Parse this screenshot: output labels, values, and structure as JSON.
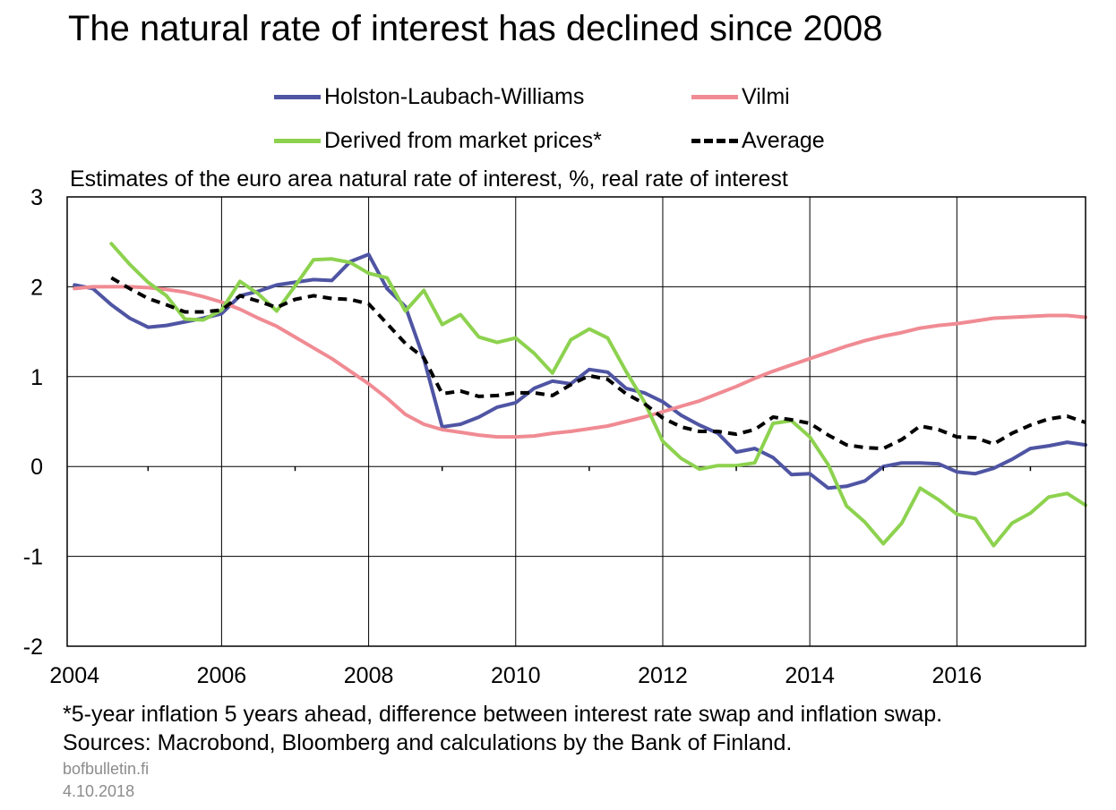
{
  "colors": {
    "hlw": "#4f55a3",
    "vilmi": "#f08b93",
    "market": "#8dd24f",
    "average": "#000000",
    "grid": "#000000"
  },
  "chart_data": {
    "type": "line",
    "title": "The natural rate of interest has declined since 2008",
    "subtitle": "Estimates of the euro area natural rate of interest, %, real rate of interest",
    "xlim": [
      2003.9,
      2017.75
    ],
    "ylim": [
      -2,
      3
    ],
    "yticks": [
      3,
      2,
      1,
      0,
      -1,
      -2
    ],
    "ytick_labels": [
      "3",
      "2",
      "1",
      "0",
      "-1",
      "-2"
    ],
    "xticks": [
      2004,
      2006,
      2008,
      2010,
      2012,
      2014,
      2016
    ],
    "xtick_labels": [
      "2004",
      "2006",
      "2008",
      "2010",
      "2012",
      "2014",
      "2016"
    ],
    "legend_position": "top",
    "series": [
      {
        "name": "Holston-Laubach-Williams",
        "color": "#4f55a3",
        "dash": "solid",
        "x": [
          2004.0,
          2004.25,
          2004.5,
          2004.75,
          2005.0,
          2005.25,
          2005.5,
          2005.75,
          2006.0,
          2006.25,
          2006.5,
          2006.75,
          2007.0,
          2007.25,
          2007.5,
          2007.75,
          2008.0,
          2008.25,
          2008.5,
          2008.75,
          2009.0,
          2009.25,
          2009.5,
          2009.75,
          2010.0,
          2010.25,
          2010.5,
          2010.75,
          2011.0,
          2011.25,
          2011.5,
          2011.75,
          2012.0,
          2012.25,
          2012.5,
          2012.75,
          2013.0,
          2013.25,
          2013.5,
          2013.75,
          2014.0,
          2014.25,
          2014.5,
          2014.75,
          2015.0,
          2015.25,
          2015.5,
          2015.75,
          2016.0,
          2016.25,
          2016.5,
          2016.75,
          2017.0,
          2017.25,
          2017.5,
          2017.75
        ],
        "values": [
          2.02,
          1.98,
          1.8,
          1.65,
          1.55,
          1.57,
          1.61,
          1.65,
          1.7,
          1.9,
          1.95,
          2.02,
          2.05,
          2.08,
          2.07,
          2.28,
          2.36,
          1.98,
          1.78,
          1.2,
          0.44,
          0.47,
          0.55,
          0.66,
          0.71,
          0.87,
          0.95,
          0.92,
          1.08,
          1.05,
          0.87,
          0.82,
          0.72,
          0.57,
          0.46,
          0.37,
          0.16,
          0.2,
          0.1,
          -0.09,
          -0.08,
          -0.24,
          -0.22,
          -0.16,
          0.0,
          0.04,
          0.04,
          0.03,
          -0.06,
          -0.08,
          -0.02,
          0.08,
          0.2,
          0.23,
          0.27,
          0.24
        ]
      },
      {
        "name": "Vilmi",
        "color": "#f08b93",
        "dash": "solid",
        "x": [
          2004.0,
          2004.25,
          2004.5,
          2004.75,
          2005.0,
          2005.25,
          2005.5,
          2005.75,
          2006.0,
          2006.25,
          2006.5,
          2006.75,
          2007.0,
          2007.25,
          2007.5,
          2007.75,
          2008.0,
          2008.25,
          2008.5,
          2008.75,
          2009.0,
          2009.25,
          2009.5,
          2009.75,
          2010.0,
          2010.25,
          2010.5,
          2010.75,
          2011.0,
          2011.25,
          2011.5,
          2011.75,
          2012.0,
          2012.25,
          2012.5,
          2012.75,
          2013.0,
          2013.25,
          2013.5,
          2013.75,
          2014.0,
          2014.25,
          2014.5,
          2014.75,
          2015.0,
          2015.25,
          2015.5,
          2015.75,
          2016.0,
          2016.25,
          2016.5,
          2016.75,
          2017.0,
          2017.25,
          2017.5,
          2017.75
        ],
        "values": [
          1.98,
          2.0,
          2.0,
          2.0,
          1.99,
          1.97,
          1.94,
          1.89,
          1.83,
          1.75,
          1.65,
          1.56,
          1.44,
          1.32,
          1.2,
          1.06,
          0.92,
          0.76,
          0.58,
          0.47,
          0.41,
          0.38,
          0.35,
          0.33,
          0.33,
          0.34,
          0.37,
          0.39,
          0.42,
          0.45,
          0.5,
          0.55,
          0.61,
          0.67,
          0.73,
          0.81,
          0.89,
          0.98,
          1.06,
          1.13,
          1.2,
          1.27,
          1.34,
          1.4,
          1.45,
          1.49,
          1.54,
          1.57,
          1.59,
          1.62,
          1.65,
          1.66,
          1.67,
          1.68,
          1.68,
          1.66
        ]
      },
      {
        "name": "Derived from market prices*",
        "color": "#8dd24f",
        "dash": "solid",
        "x": [
          2004.5,
          2004.75,
          2005.0,
          2005.25,
          2005.5,
          2005.75,
          2006.0,
          2006.25,
          2006.5,
          2006.75,
          2007.0,
          2007.25,
          2007.5,
          2007.75,
          2008.0,
          2008.25,
          2008.5,
          2008.75,
          2009.0,
          2009.25,
          2009.5,
          2009.75,
          2010.0,
          2010.25,
          2010.5,
          2010.75,
          2011.0,
          2011.25,
          2011.5,
          2011.75,
          2012.0,
          2012.25,
          2012.5,
          2012.75,
          2013.0,
          2013.25,
          2013.5,
          2013.75,
          2014.0,
          2014.25,
          2014.5,
          2014.75,
          2015.0,
          2015.25,
          2015.5,
          2015.75,
          2016.0,
          2016.25,
          2016.5,
          2016.75,
          2017.0,
          2017.25,
          2017.5,
          2017.75
        ],
        "values": [
          2.48,
          2.25,
          2.05,
          1.9,
          1.64,
          1.63,
          1.74,
          2.06,
          1.92,
          1.73,
          2.01,
          2.3,
          2.31,
          2.27,
          2.15,
          2.1,
          1.73,
          1.96,
          1.58,
          1.69,
          1.44,
          1.38,
          1.43,
          1.26,
          1.04,
          1.41,
          1.53,
          1.43,
          1.06,
          0.72,
          0.28,
          0.09,
          -0.03,
          0.01,
          0.01,
          0.04,
          0.48,
          0.51,
          0.33,
          0.02,
          -0.44,
          -0.62,
          -0.86,
          -0.63,
          -0.24,
          -0.37,
          -0.53,
          -0.58,
          -0.88,
          -0.63,
          -0.52,
          -0.34,
          -0.3,
          -0.43
        ]
      },
      {
        "name": "Average",
        "color": "#000000",
        "dash": "dashed",
        "x": [
          2004.5,
          2004.75,
          2005.0,
          2005.25,
          2005.5,
          2005.75,
          2006.0,
          2006.25,
          2006.5,
          2006.75,
          2007.0,
          2007.25,
          2007.5,
          2007.75,
          2008.0,
          2008.25,
          2008.5,
          2008.75,
          2009.0,
          2009.25,
          2009.5,
          2009.75,
          2010.0,
          2010.25,
          2010.5,
          2010.75,
          2011.0,
          2011.25,
          2011.5,
          2011.75,
          2012.0,
          2012.25,
          2012.5,
          2012.75,
          2013.0,
          2013.25,
          2013.5,
          2013.75,
          2014.0,
          2014.25,
          2014.5,
          2014.75,
          2015.0,
          2015.25,
          2015.5,
          2015.75,
          2016.0,
          2016.25,
          2016.5,
          2016.75,
          2017.0,
          2017.25,
          2017.5,
          2017.75
        ],
        "values": [
          2.1,
          1.98,
          1.87,
          1.8,
          1.72,
          1.72,
          1.74,
          1.9,
          1.84,
          1.77,
          1.86,
          1.9,
          1.87,
          1.86,
          1.81,
          1.59,
          1.37,
          1.21,
          0.81,
          0.84,
          0.78,
          0.79,
          0.82,
          0.82,
          0.79,
          0.91,
          1.01,
          0.97,
          0.81,
          0.7,
          0.54,
          0.44,
          0.39,
          0.39,
          0.36,
          0.41,
          0.55,
          0.52,
          0.48,
          0.35,
          0.24,
          0.21,
          0.2,
          0.3,
          0.45,
          0.41,
          0.33,
          0.32,
          0.25,
          0.37,
          0.46,
          0.53,
          0.56,
          0.49
        ]
      }
    ]
  },
  "notes": {
    "footnote": "*5-year inflation 5 years ahead, difference between interest rate swap and inflation swap.",
    "sources": "Sources: Macrobond, Bloomberg and calculations by the Bank of Finland.",
    "site": "bofbulletin.fi",
    "date": "4.10.2018"
  }
}
